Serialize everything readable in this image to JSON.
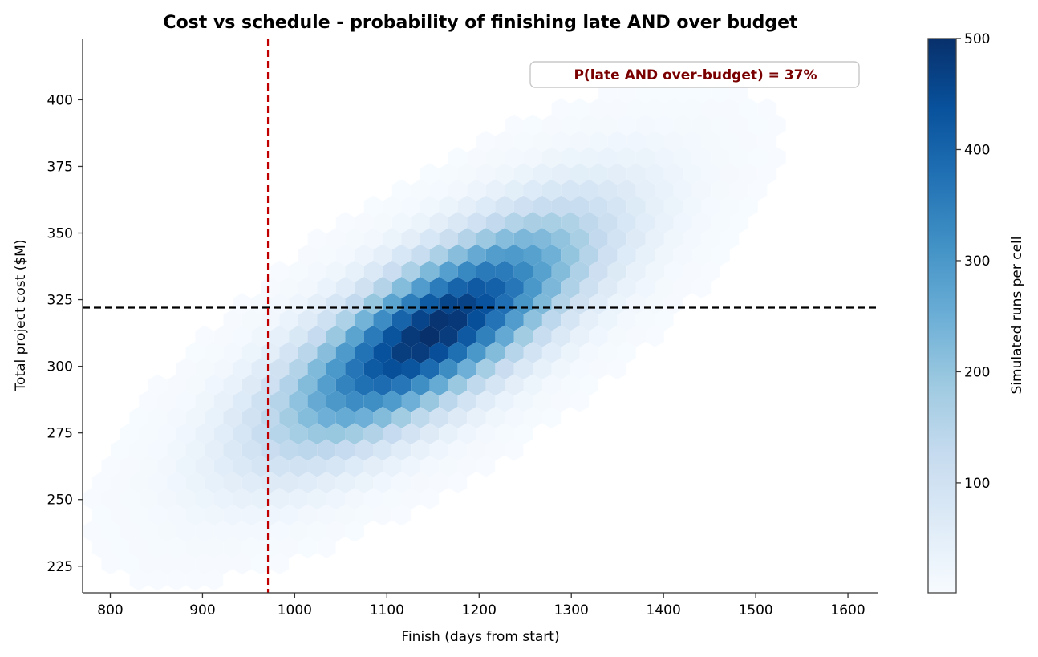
{
  "chart_data": {
    "type": "hexbin",
    "title": "Cost vs schedule - probability of finishing late AND over budget",
    "xlabel": "Finish  (days from start)",
    "ylabel": "Total project cost  ($M)",
    "xlim": [
      770,
      1633
    ],
    "ylim": [
      215,
      423
    ],
    "x_ticks": [
      800,
      900,
      1000,
      1100,
      1200,
      1300,
      1400,
      1500,
      1600
    ],
    "y_ticks": [
      225,
      250,
      275,
      300,
      325,
      350,
      375,
      400
    ],
    "deadline_day": 971,
    "budget_musd": 322,
    "deadline_line_color": "#c00000",
    "budget_line_color": "#000000",
    "annotation": "P(late AND over-budget) = 37%",
    "colormap": "Blues",
    "colorbar": {
      "label": "Simulated runs per cell",
      "range": [
        1,
        500
      ],
      "ticks": [
        100,
        200,
        300,
        400,
        500
      ]
    },
    "distribution": {
      "center_days": [
        1150,
        313
      ],
      "std_days": 110,
      "std_cost": 28,
      "correlation": 0.75,
      "peak_count": 500
    },
    "grid": false
  }
}
